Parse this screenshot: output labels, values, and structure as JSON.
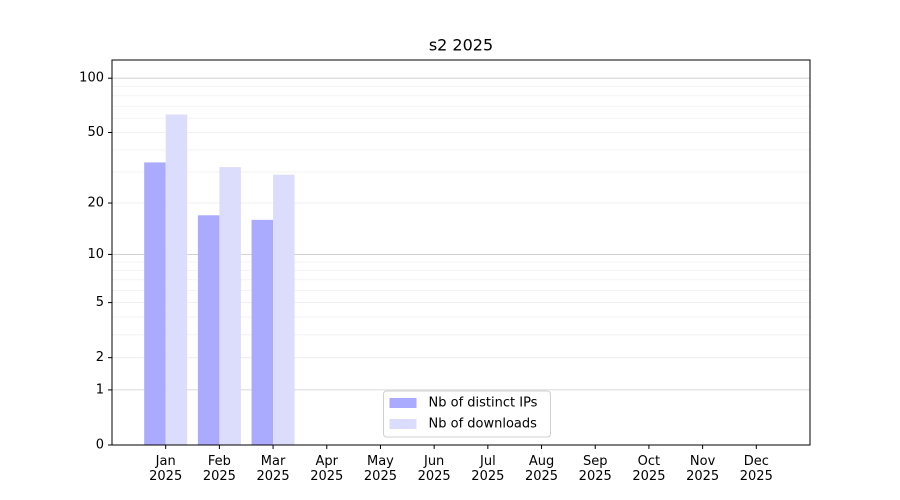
{
  "chart_data": {
    "type": "bar",
    "title": "s2 2025",
    "categories": [
      "Jan\n2025",
      "Feb\n2025",
      "Mar\n2025",
      "Apr\n2025",
      "May\n2025",
      "Jun\n2025",
      "Jul\n2025",
      "Aug\n2025",
      "Sep\n2025",
      "Oct\n2025",
      "Nov\n2025",
      "Dec\n2025"
    ],
    "series": [
      {
        "name": "Nb of distinct IPs",
        "color": "#aaaaff",
        "values": [
          34,
          17,
          16,
          0,
          0,
          0,
          0,
          0,
          0,
          0,
          0,
          0
        ]
      },
      {
        "name": "Nb of downloads",
        "color": "#dcdcfd",
        "values": [
          63,
          32,
          29,
          0,
          0,
          0,
          0,
          0,
          0,
          0,
          0,
          0
        ]
      }
    ],
    "yscale": "log1p",
    "ylim": [
      0,
      126
    ],
    "yticks": [
      0,
      1,
      2,
      5,
      10,
      20,
      50,
      100
    ],
    "yticks_minor": [
      3,
      4,
      6,
      7,
      8,
      9,
      30,
      40,
      60,
      70,
      80,
      90
    ],
    "grid": true,
    "legend": "lower center"
  }
}
